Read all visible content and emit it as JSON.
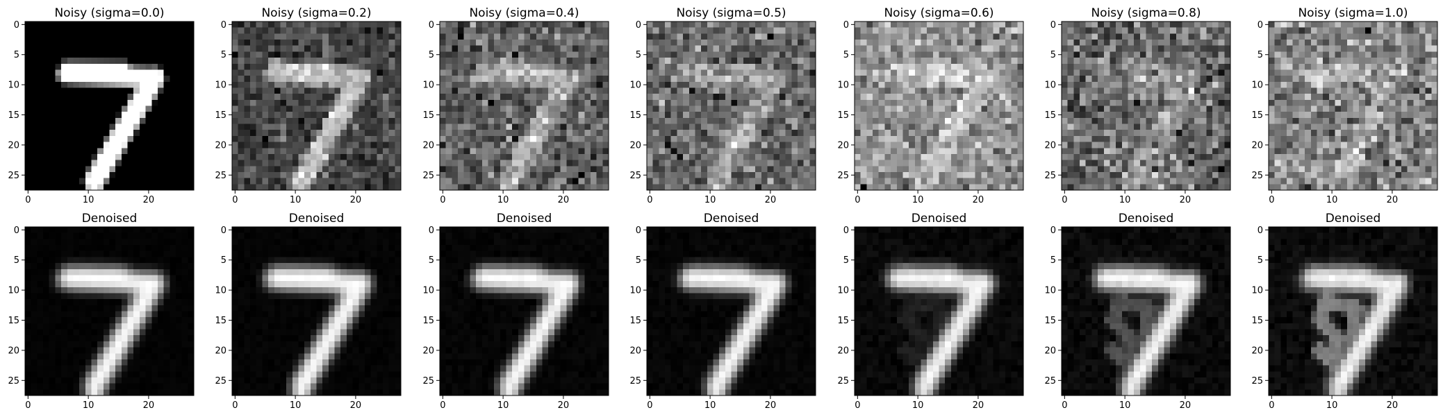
{
  "figure": {
    "rows": [
      {
        "kind": "noisy",
        "panels": [
          {
            "title": "Noisy (sigma=0.0)",
            "sigma": 0.0
          },
          {
            "title": "Noisy (sigma=0.2)",
            "sigma": 0.2
          },
          {
            "title": "Noisy (sigma=0.4)",
            "sigma": 0.4
          },
          {
            "title": "Noisy (sigma=0.5)",
            "sigma": 0.5
          },
          {
            "title": "Noisy (sigma=0.6)",
            "sigma": 0.6
          },
          {
            "title": "Noisy (sigma=0.8)",
            "sigma": 0.8
          },
          {
            "title": "Noisy (sigma=1.0)",
            "sigma": 1.0
          }
        ]
      },
      {
        "kind": "denoised",
        "panels": [
          {
            "title": "Denoised",
            "sigma": 0.0
          },
          {
            "title": "Denoised",
            "sigma": 0.2
          },
          {
            "title": "Denoised",
            "sigma": 0.4
          },
          {
            "title": "Denoised",
            "sigma": 0.5
          },
          {
            "title": "Denoised",
            "sigma": 0.6
          },
          {
            "title": "Denoised",
            "sigma": 0.8
          },
          {
            "title": "Denoised",
            "sigma": 1.0
          }
        ]
      }
    ],
    "x_ticks": [
      "0",
      "10",
      "20"
    ],
    "y_ticks": [
      "0",
      "5",
      "10",
      "15",
      "20",
      "25"
    ],
    "x_tick_values": [
      0,
      10,
      20
    ],
    "y_tick_values": [
      0,
      5,
      10,
      15,
      20,
      25
    ],
    "image_size": 28,
    "colormap": "gray"
  }
}
